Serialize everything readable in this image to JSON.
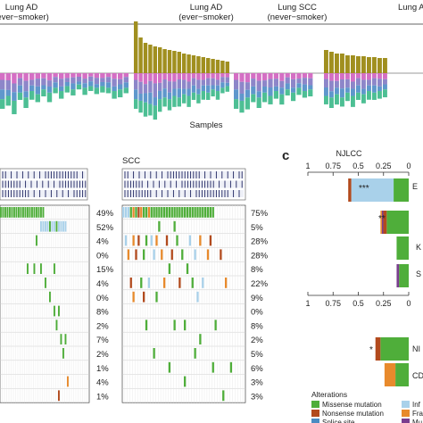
{
  "colors": {
    "olive": "#a08f1f",
    "pink": "#d46fc4",
    "violet": "#8d86c9",
    "blue": "#5f97cc",
    "teal": "#4dbf94",
    "missense": "#4fae3a",
    "nonsense": "#b24a1d",
    "splice": "#4b8bc2",
    "inframe": "#a9d1ea",
    "frameshift": "#e88a2c",
    "multi": "#7a3d8e",
    "grid": "#cccccc",
    "red_pct": "#d43b2a",
    "navy": "#1e2460"
  },
  "top_panel": {
    "groups": [
      {
        "line1": "Lung AD",
        "line2": "(ever−smoker)"
      },
      {
        "line1": "Lung AD",
        "line2": "(ever−smoker)"
      },
      {
        "line1": "Lung SCC",
        "line2": "(never−smoker)"
      },
      {
        "line1": "Lung A",
        "line2": ""
      }
    ],
    "xlabel": "Samples"
  },
  "panel_c": {
    "letter": "c",
    "title": "NJLCC",
    "axis_ticks": [
      "1",
      "0.75",
      "0.5",
      "0.25",
      "0"
    ],
    "gene_labels": [
      "E",
      "K",
      "S",
      "NI",
      "CD"
    ],
    "significance": [
      "***",
      "**",
      "*"
    ]
  },
  "heatmap": {
    "group_label": "SCC"
  },
  "legend": {
    "title": "Alterations",
    "items": [
      {
        "label": "Missense mutation",
        "color": "#4fae3a"
      },
      {
        "label": "Nonsense mutation",
        "color": "#b24a1d"
      },
      {
        "label": "Splice site",
        "color": "#4b8bc2"
      },
      {
        "label": "Inf",
        "color": "#a9d1ea"
      },
      {
        "label": "Fra",
        "color": "#e88a2c"
      },
      {
        "label": "Mu",
        "color": "#7a3d8e"
      }
    ]
  },
  "chart_data": [
    {
      "type": "bar",
      "name": "mutation-burden",
      "note_units": "relative stacked bar heights; upward=olive burden, downward=signature fractions",
      "groups": [
        {
          "up": [
            0,
            0,
            0,
            0,
            0,
            0,
            0,
            0,
            0,
            0,
            0,
            0,
            0,
            0,
            0,
            0,
            0,
            0,
            0,
            0,
            0,
            0
          ],
          "down": [
            16,
            14,
            17,
            12,
            15,
            11,
            13,
            10,
            12,
            9,
            11,
            8,
            10,
            7,
            9,
            8,
            9,
            8,
            9,
            11,
            10,
            9
          ]
        },
        {
          "up": [
            58,
            40,
            34,
            32,
            30,
            29,
            27,
            26,
            25,
            24,
            22,
            21,
            20,
            19,
            18,
            17,
            16,
            15,
            14,
            13
          ],
          "down": [
            16,
            17,
            18,
            19,
            20,
            16,
            15,
            16,
            14,
            15,
            13,
            14,
            12,
            13,
            11,
            12,
            10,
            11,
            9,
            8
          ]
        },
        {
          "up": [
            0,
            0,
            0,
            0,
            0,
            0,
            0,
            0,
            0,
            0,
            0,
            0,
            0,
            0
          ],
          "down": [
            16,
            17,
            15,
            13,
            15,
            12,
            14,
            11,
            13,
            10,
            12,
            9,
            11,
            10
          ]
        },
        {
          "up": [
            26,
            24,
            22,
            22,
            20,
            20,
            19,
            19,
            18,
            18,
            17,
            17
          ],
          "down": [
            14,
            15,
            13,
            15,
            12,
            14,
            12,
            13,
            11,
            12,
            11,
            10
          ]
        }
      ]
    },
    {
      "type": "heatmap",
      "name": "oncoprint",
      "left_percentages": [
        "49%",
        "52%",
        "4%",
        "0%",
        "15%",
        "4%",
        "0%",
        "8%",
        "2%",
        "7%",
        "2%",
        "1%",
        "4%",
        "1%"
      ],
      "left_red": [
        false,
        true,
        false,
        false,
        false,
        false,
        false,
        true,
        false,
        false,
        false,
        false,
        false,
        false
      ],
      "right_percentages": [
        "75%",
        "5%",
        "28%",
        "28%",
        "8%",
        "22%",
        "9%",
        "0%",
        "8%",
        "2%",
        "5%",
        "6%",
        "3%",
        "3%"
      ],
      "right_red": [
        true,
        false,
        true,
        true,
        false,
        true,
        true,
        false,
        false,
        false,
        false,
        false,
        false,
        false
      ]
    },
    {
      "type": "bar",
      "name": "njlcc-fractions",
      "xlim": [
        1,
        0
      ],
      "rows": [
        {
          "label": "E",
          "sig": "***",
          "segments": [
            {
              "alteration": "Missense mutation",
              "value": 0.25
            },
            {
              "alteration": "Inf",
              "value": 0.7
            },
            {
              "alteration": "Nonsense mutation",
              "value": 0.05
            }
          ]
        },
        {
          "label": "",
          "sig": "**",
          "segments": [
            {
              "alteration": "Missense mutation",
              "value": 0.78
            },
            {
              "alteration": "Nonsense mutation",
              "value": 0.12
            },
            {
              "alteration": "Mu",
              "value": 0.05
            },
            {
              "alteration": "Fra",
              "value": 0.05
            }
          ]
        },
        {
          "label": "K",
          "sig": "",
          "segments": [
            {
              "alteration": "Missense mutation",
              "value": 1.0
            }
          ]
        },
        {
          "label": "S",
          "sig": "",
          "segments": [
            {
              "alteration": "Missense mutation",
              "value": 0.8
            },
            {
              "alteration": "Mu",
              "value": 0.2
            }
          ]
        },
        {
          "label": "NI",
          "sig": "*",
          "segments": [
            {
              "alteration": "Missense mutation",
              "value": 0.85
            },
            {
              "alteration": "Nonsense mutation",
              "value": 0.15
            }
          ]
        },
        {
          "label": "CD",
          "sig": "",
          "segments": [
            {
              "alteration": "Missense mutation",
              "value": 0.55
            },
            {
              "alteration": "Fra",
              "value": 0.45
            }
          ]
        }
      ]
    }
  ]
}
